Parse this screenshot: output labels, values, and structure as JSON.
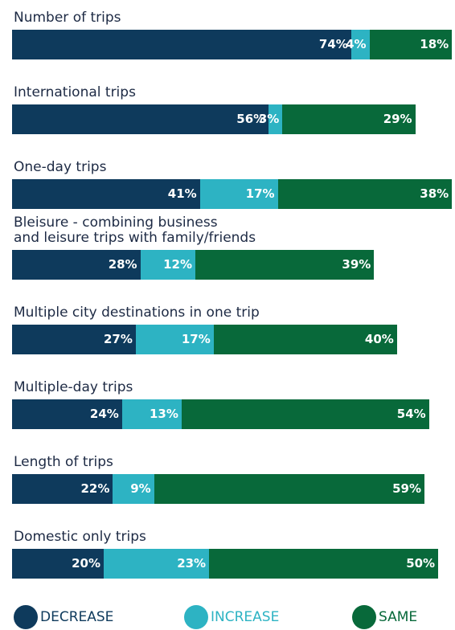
{
  "chart_data": {
    "type": "stacked-bar-horizontal",
    "categories": [
      "Number of trips",
      "International trips",
      "One-day trips",
      "Bleisure - combining business\nand leisure trips with family/friends",
      "Multiple city destinations in one trip",
      "Multiple-day trips",
      "Length of trips",
      "Domestic only trips"
    ],
    "series": [
      {
        "name": "DECREASE",
        "color": "#0e3a5c",
        "values": [
          74,
          56,
          41,
          28,
          27,
          24,
          22,
          20
        ],
        "value_labels": [
          "74%",
          "56%",
          "41%",
          "28%",
          "27%",
          "24%",
          "22%",
          "20%"
        ]
      },
      {
        "name": "INCREASE",
        "color": "#2db3c3",
        "values": [
          4,
          3,
          17,
          12,
          17,
          13,
          9,
          23
        ],
        "value_labels": [
          "4%",
          "3%",
          "17%",
          "12%",
          "17%",
          "13%",
          "9%",
          "23%"
        ]
      },
      {
        "name": "SAME",
        "color": "#08693a",
        "values": [
          18,
          29,
          38,
          39,
          40,
          54,
          59,
          50
        ],
        "value_labels": [
          "18%",
          "29%",
          "38%",
          "39%",
          "40%",
          "54%",
          "59%",
          "50%"
        ]
      }
    ]
  }
}
